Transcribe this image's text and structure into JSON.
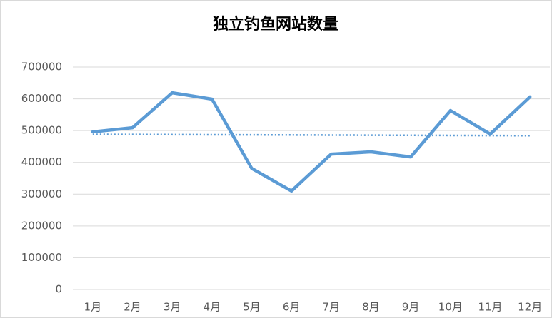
{
  "chart_data": {
    "type": "line",
    "title": "独立钓鱼网站数量",
    "categories": [
      "1月",
      "2月",
      "3月",
      "4月",
      "5月",
      "6月",
      "7月",
      "8月",
      "9月",
      "10月",
      "11月",
      "12月"
    ],
    "values": [
      496000,
      509000,
      619000,
      599000,
      381000,
      310000,
      426000,
      433000,
      417000,
      563000,
      489000,
      606000
    ],
    "color": "#5b9bd5",
    "trendline": {
      "values": [
        488000,
        484000
      ],
      "color": "#5b9bd5",
      "style": "dotted"
    },
    "ylim": [
      0,
      700000
    ],
    "yticks": [
      0,
      100000,
      200000,
      300000,
      400000,
      500000,
      600000,
      700000
    ],
    "grid": true
  }
}
